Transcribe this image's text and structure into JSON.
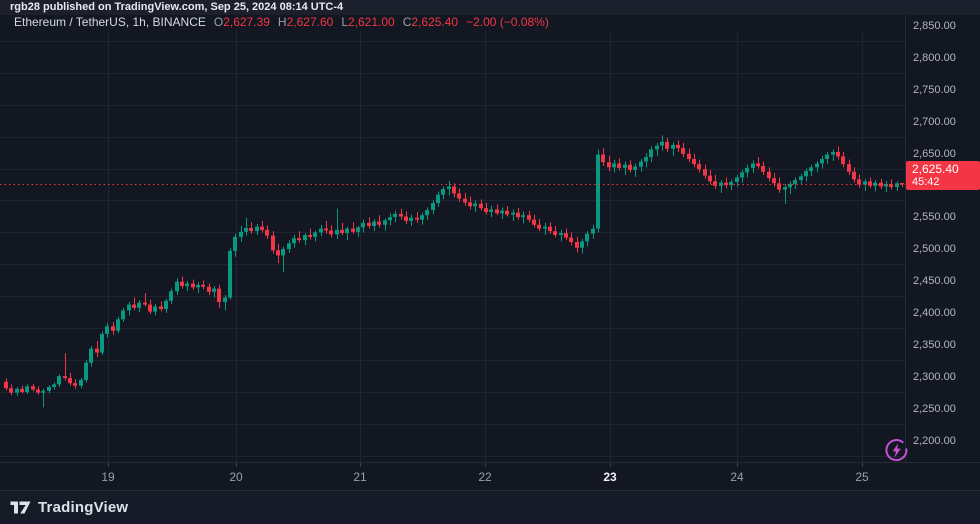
{
  "published_bar": {
    "text": "rgb28 published on TradingView.com, Sep 25, 2024 08:14 UTC-4"
  },
  "legend": {
    "symbol": "Ethereum / TetherUS, 1h, BINANCE",
    "ohlc": [
      {
        "label": "O",
        "value": "2,627.39"
      },
      {
        "label": "H",
        "value": "2,627.60"
      },
      {
        "label": "L",
        "value": "2,621.00"
      },
      {
        "label": "C",
        "value": "2,625.40"
      }
    ],
    "change": "−2.00 (−0.08%)"
  },
  "price_badge": {
    "price": "2,625.40",
    "countdown": "45:42"
  },
  "footer": {
    "brand": "TradingView"
  },
  "colors": {
    "up": "#089981",
    "down": "#f23645",
    "grid": "#1f2433",
    "current_price_line": "#f23645",
    "badge_bg": "#f23645",
    "accent_purple": "#c452d6"
  },
  "chart_data": {
    "type": "candlestick",
    "title": "Ethereum / TetherUS, 1h, BINANCE",
    "pair": "Ethereum / TetherUS",
    "interval": "1h",
    "exchange": "BINANCE",
    "current": {
      "open": 2627.39,
      "high": 2627.6,
      "low": 2621.0,
      "close": 2625.4,
      "change": -2.0,
      "change_pct": -0.08
    },
    "current_price": 2625.4,
    "grid": true,
    "legend_position": "top-left",
    "ylim": [
      2167,
      2867
    ],
    "price_ticks": [
      {
        "text": "2,850.00",
        "price": 2850
      },
      {
        "text": "2,800.00",
        "price": 2800
      },
      {
        "text": "2,750.00",
        "price": 2750
      },
      {
        "text": "2,700.00",
        "price": 2700
      },
      {
        "text": "2,650.00",
        "price": 2650
      },
      {
        "text": "2,550.00",
        "price": 2550
      },
      {
        "text": "2,500.00",
        "price": 2500
      },
      {
        "text": "2,450.00",
        "price": 2450
      },
      {
        "text": "2,400.00",
        "price": 2400
      },
      {
        "text": "2,350.00",
        "price": 2350
      },
      {
        "text": "2,300.00",
        "price": 2300
      },
      {
        "text": "2,250.00",
        "price": 2250
      },
      {
        "text": "2,200.00",
        "price": 2200
      }
    ],
    "hidden_gridline_prices": [
      2600
    ],
    "time_ticks": [
      {
        "label": "19",
        "x": 108,
        "em": false
      },
      {
        "label": "20",
        "x": 236,
        "em": false
      },
      {
        "label": "21",
        "x": 360,
        "em": false
      },
      {
        "label": "22",
        "x": 485,
        "em": false
      },
      {
        "label": "23",
        "x": 610,
        "em": true
      },
      {
        "label": "24",
        "x": 737,
        "em": false
      },
      {
        "label": "25",
        "x": 862,
        "em": false
      }
    ],
    "candles_format": [
      "open",
      "high",
      "low",
      "close"
    ],
    "candles": [
      [
        2316,
        2321,
        2303,
        2306
      ],
      [
        2306,
        2312,
        2295,
        2299
      ],
      [
        2299,
        2308,
        2294,
        2305
      ],
      [
        2305,
        2310,
        2298,
        2300
      ],
      [
        2300,
        2312,
        2297,
        2309
      ],
      [
        2309,
        2313,
        2301,
        2304
      ],
      [
        2304,
        2309,
        2296,
        2299
      ],
      [
        2299,
        2305,
        2276,
        2302
      ],
      [
        2302,
        2311,
        2298,
        2308
      ],
      [
        2308,
        2315,
        2304,
        2312
      ],
      [
        2312,
        2328,
        2308,
        2325
      ],
      [
        2325,
        2361,
        2318,
        2322
      ],
      [
        2322,
        2330,
        2310,
        2314
      ],
      [
        2314,
        2320,
        2305,
        2310
      ],
      [
        2310,
        2322,
        2306,
        2319
      ],
      [
        2319,
        2350,
        2315,
        2346
      ],
      [
        2346,
        2372,
        2340,
        2368
      ],
      [
        2368,
        2380,
        2355,
        2362
      ],
      [
        2362,
        2395,
        2358,
        2391
      ],
      [
        2391,
        2408,
        2385,
        2403
      ],
      [
        2403,
        2410,
        2390,
        2396
      ],
      [
        2396,
        2418,
        2392,
        2414
      ],
      [
        2414,
        2432,
        2410,
        2428
      ],
      [
        2428,
        2441,
        2420,
        2437
      ],
      [
        2437,
        2448,
        2428,
        2432
      ],
      [
        2432,
        2444,
        2425,
        2440
      ],
      [
        2440,
        2455,
        2434,
        2437
      ],
      [
        2437,
        2445,
        2422,
        2426
      ],
      [
        2426,
        2438,
        2420,
        2434
      ],
      [
        2434,
        2442,
        2426,
        2430
      ],
      [
        2430,
        2446,
        2424,
        2443
      ],
      [
        2443,
        2462,
        2438,
        2458
      ],
      [
        2458,
        2478,
        2452,
        2473
      ],
      [
        2473,
        2481,
        2462,
        2466
      ],
      [
        2466,
        2474,
        2458,
        2470
      ],
      [
        2470,
        2476,
        2460,
        2464
      ],
      [
        2464,
        2472,
        2455,
        2468
      ],
      [
        2468,
        2475,
        2461,
        2465
      ],
      [
        2465,
        2470,
        2452,
        2457
      ],
      [
        2457,
        2466,
        2448,
        2462
      ],
      [
        2462,
        2468,
        2432,
        2441
      ],
      [
        2441,
        2452,
        2428,
        2448
      ],
      [
        2448,
        2525,
        2445,
        2521
      ],
      [
        2521,
        2548,
        2512,
        2543
      ],
      [
        2543,
        2560,
        2535,
        2551
      ],
      [
        2551,
        2573,
        2545,
        2557
      ],
      [
        2557,
        2566,
        2548,
        2552
      ],
      [
        2552,
        2563,
        2546,
        2559
      ],
      [
        2559,
        2568,
        2550,
        2554
      ],
      [
        2554,
        2561,
        2540,
        2545
      ],
      [
        2545,
        2552,
        2517,
        2522
      ],
      [
        2522,
        2532,
        2502,
        2514
      ],
      [
        2514,
        2528,
        2488,
        2524
      ],
      [
        2524,
        2538,
        2518,
        2533
      ],
      [
        2533,
        2546,
        2526,
        2541
      ],
      [
        2541,
        2552,
        2534,
        2538
      ],
      [
        2538,
        2549,
        2530,
        2546
      ],
      [
        2546,
        2556,
        2539,
        2543
      ],
      [
        2543,
        2553,
        2536,
        2550
      ],
      [
        2550,
        2562,
        2544,
        2556
      ],
      [
        2556,
        2568,
        2548,
        2553
      ],
      [
        2553,
        2561,
        2542,
        2547
      ],
      [
        2547,
        2587,
        2540,
        2554
      ],
      [
        2554,
        2565,
        2546,
        2549
      ],
      [
        2549,
        2559,
        2538,
        2556
      ],
      [
        2556,
        2566,
        2548,
        2551
      ],
      [
        2551,
        2560,
        2543,
        2558
      ],
      [
        2558,
        2570,
        2550,
        2565
      ],
      [
        2565,
        2574,
        2556,
        2560
      ],
      [
        2560,
        2571,
        2552,
        2567
      ],
      [
        2567,
        2577,
        2558,
        2562
      ],
      [
        2562,
        2572,
        2553,
        2569
      ],
      [
        2569,
        2580,
        2561,
        2574
      ],
      [
        2574,
        2584,
        2566,
        2579
      ],
      [
        2579,
        2587,
        2570,
        2575
      ],
      [
        2575,
        2583,
        2563,
        2568
      ],
      [
        2568,
        2578,
        2560,
        2573
      ],
      [
        2573,
        2582,
        2565,
        2570
      ],
      [
        2570,
        2581,
        2562,
        2577
      ],
      [
        2577,
        2589,
        2569,
        2585
      ],
      [
        2585,
        2600,
        2578,
        2596
      ],
      [
        2596,
        2614,
        2590,
        2609
      ],
      [
        2609,
        2622,
        2602,
        2618
      ],
      [
        2618,
        2631,
        2608,
        2622
      ],
      [
        2622,
        2627,
        2605,
        2611
      ],
      [
        2611,
        2619,
        2598,
        2603
      ],
      [
        2603,
        2612,
        2592,
        2597
      ],
      [
        2597,
        2606,
        2586,
        2591
      ],
      [
        2591,
        2600,
        2582,
        2595
      ],
      [
        2595,
        2602,
        2584,
        2588
      ],
      [
        2588,
        2596,
        2578,
        2582
      ],
      [
        2582,
        2592,
        2574,
        2586
      ],
      [
        2586,
        2594,
        2577,
        2580
      ],
      [
        2580,
        2589,
        2571,
        2584
      ],
      [
        2584,
        2591,
        2575,
        2578
      ],
      [
        2578,
        2586,
        2568,
        2581
      ],
      [
        2581,
        2588,
        2570,
        2574
      ],
      [
        2574,
        2583,
        2564,
        2577
      ],
      [
        2577,
        2584,
        2566,
        2570
      ],
      [
        2570,
        2578,
        2558,
        2562
      ],
      [
        2562,
        2571,
        2552,
        2556
      ],
      [
        2556,
        2565,
        2546,
        2559
      ],
      [
        2559,
        2566,
        2548,
        2552
      ],
      [
        2552,
        2560,
        2542,
        2546
      ],
      [
        2546,
        2554,
        2536,
        2549
      ],
      [
        2549,
        2556,
        2538,
        2542
      ],
      [
        2542,
        2550,
        2530,
        2535
      ],
      [
        2535,
        2543,
        2519,
        2526
      ],
      [
        2526,
        2540,
        2517,
        2536
      ],
      [
        2536,
        2552,
        2528,
        2548
      ],
      [
        2548,
        2562,
        2540,
        2556
      ],
      [
        2556,
        2680,
        2550,
        2672
      ],
      [
        2672,
        2682,
        2654,
        2660
      ],
      [
        2660,
        2670,
        2646,
        2652
      ],
      [
        2652,
        2664,
        2644,
        2658
      ],
      [
        2658,
        2666,
        2647,
        2651
      ],
      [
        2651,
        2661,
        2640,
        2656
      ],
      [
        2656,
        2663,
        2644,
        2648
      ],
      [
        2648,
        2658,
        2637,
        2653
      ],
      [
        2653,
        2665,
        2645,
        2661
      ],
      [
        2661,
        2674,
        2652,
        2668
      ],
      [
        2668,
        2685,
        2660,
        2680
      ],
      [
        2680,
        2690,
        2670,
        2686
      ],
      [
        2686,
        2702,
        2678,
        2692
      ],
      [
        2692,
        2698,
        2676,
        2681
      ],
      [
        2681,
        2691,
        2670,
        2687
      ],
      [
        2687,
        2694,
        2676,
        2682
      ],
      [
        2682,
        2690,
        2668,
        2673
      ],
      [
        2673,
        2681,
        2660,
        2665
      ],
      [
        2665,
        2673,
        2652,
        2657
      ],
      [
        2657,
        2664,
        2644,
        2649
      ],
      [
        2649,
        2656,
        2634,
        2639
      ],
      [
        2639,
        2648,
        2625,
        2630
      ],
      [
        2630,
        2640,
        2618,
        2623
      ],
      [
        2623,
        2632,
        2612,
        2628
      ],
      [
        2628,
        2636,
        2619,
        2624
      ],
      [
        2624,
        2633,
        2616,
        2629
      ],
      [
        2629,
        2640,
        2622,
        2636
      ],
      [
        2636,
        2648,
        2628,
        2644
      ],
      [
        2644,
        2656,
        2636,
        2651
      ],
      [
        2651,
        2663,
        2643,
        2658
      ],
      [
        2658,
        2668,
        2650,
        2654
      ],
      [
        2654,
        2661,
        2640,
        2645
      ],
      [
        2645,
        2652,
        2630,
        2635
      ],
      [
        2635,
        2643,
        2622,
        2627
      ],
      [
        2627,
        2636,
        2612,
        2617
      ],
      [
        2617,
        2626,
        2595,
        2621
      ],
      [
        2621,
        2630,
        2610,
        2626
      ],
      [
        2626,
        2636,
        2618,
        2632
      ],
      [
        2632,
        2642,
        2624,
        2638
      ],
      [
        2638,
        2650,
        2630,
        2646
      ],
      [
        2646,
        2656,
        2638,
        2652
      ],
      [
        2652,
        2662,
        2644,
        2658
      ],
      [
        2658,
        2670,
        2650,
        2665
      ],
      [
        2665,
        2676,
        2657,
        2672
      ],
      [
        2672,
        2680,
        2662,
        2676
      ],
      [
        2676,
        2685,
        2664,
        2669
      ],
      [
        2669,
        2676,
        2652,
        2657
      ],
      [
        2657,
        2664,
        2640,
        2645
      ],
      [
        2645,
        2652,
        2628,
        2633
      ],
      [
        2633,
        2641,
        2620,
        2625
      ],
      [
        2625,
        2634,
        2615,
        2630
      ],
      [
        2630,
        2636,
        2619,
        2623
      ],
      [
        2623,
        2632,
        2614,
        2628
      ],
      [
        2628,
        2634,
        2618,
        2622
      ],
      [
        2622,
        2631,
        2613,
        2626
      ],
      [
        2626,
        2633,
        2617,
        2621
      ],
      [
        2621,
        2630,
        2615,
        2627
      ],
      [
        2627.39,
        2627.6,
        2621.0,
        2625.4
      ]
    ]
  }
}
